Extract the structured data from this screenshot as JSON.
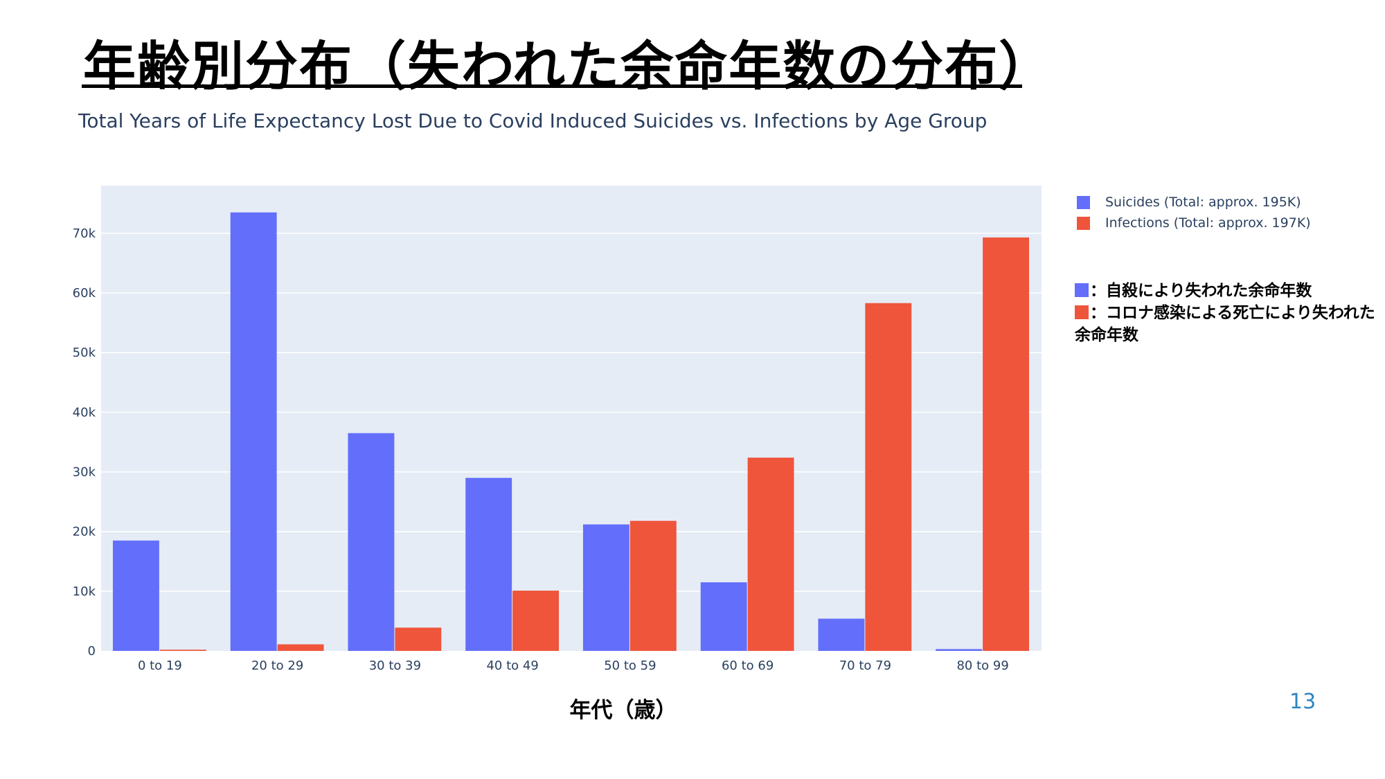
{
  "slide": {
    "title": "年齢別分布（失われた余命年数の分布）",
    "page_number": "13"
  },
  "colors": {
    "suicides": "#636efa",
    "infections": "#ef553b",
    "plot_bg": "#e5ecf6",
    "text": "#2a3f5f"
  },
  "legend": {
    "items": [
      {
        "label": "Suicides (Total: approx. 195K)"
      },
      {
        "label": "Infections (Total: approx. 197K)"
      }
    ]
  },
  "notes": {
    "suicides_note": "：自殺により失われた余命年数",
    "infections_note": "：コロナ感染による死亡により失われた余命年数"
  },
  "chart_data": {
    "type": "bar",
    "title": "Total Years of Life Expectancy Lost Due to Covid Induced Suicides vs. Infections by Age Group",
    "xlabel": "年代（歳）",
    "ylabel": "",
    "categories": [
      "0 to 19",
      "20 to 29",
      "30 to 39",
      "40 to 49",
      "50 to 59",
      "60 to 69",
      "70 to 79",
      "80 to 99"
    ],
    "series": [
      {
        "name": "Suicides (Total: approx. 195K)",
        "values": [
          18500,
          73500,
          36500,
          29000,
          21200,
          11500,
          5400,
          300
        ]
      },
      {
        "name": "Infections (Total: approx. 197K)",
        "values": [
          200,
          1100,
          3900,
          10100,
          21800,
          32400,
          58300,
          69300
        ]
      }
    ],
    "ylim": [
      0,
      78000
    ],
    "yticks": [
      0,
      10000,
      20000,
      30000,
      40000,
      50000,
      60000,
      70000
    ],
    "ytick_labels": [
      "0",
      "10k",
      "20k",
      "30k",
      "40k",
      "50k",
      "60k",
      "70k"
    ],
    "grid": true,
    "legend_position": "top-right"
  }
}
